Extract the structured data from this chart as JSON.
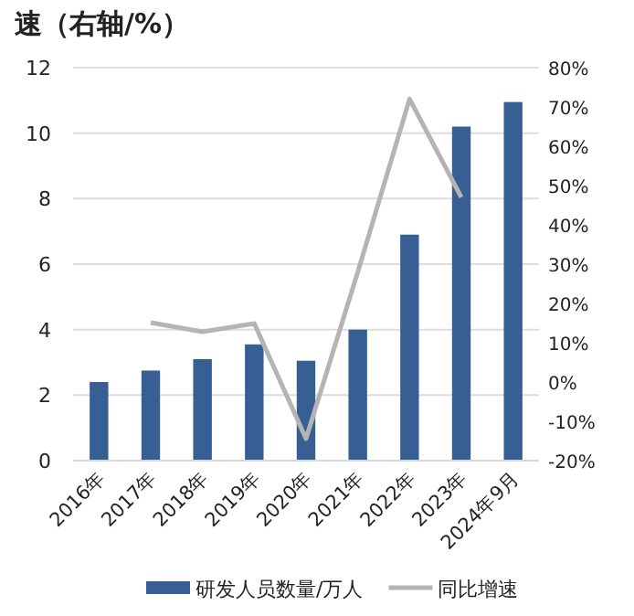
{
  "chart_data": {
    "type": "bar",
    "title": "速（右轴/%）",
    "categories": [
      "2016年",
      "2017年",
      "2018年",
      "2019年",
      "2020年",
      "2021年",
      "2022年",
      "2023年",
      "2024年9月"
    ],
    "series": [
      {
        "name": "研发人员数量/万人",
        "color": "#375f94",
        "values": [
          2.4,
          2.75,
          3.1,
          3.55,
          3.05,
          4.0,
          6.9,
          10.2,
          10.95
        ]
      },
      {
        "name": "同比增速",
        "type": "line",
        "axis": "y2",
        "color": "#b4b4b4",
        "values": [
          null,
          15.1,
          12.8,
          14.9,
          -14.4,
          28,
          72,
          47,
          null
        ]
      }
    ],
    "ylim": [
      0,
      12
    ],
    "yticks": [
      0,
      2,
      4,
      6,
      8,
      10,
      12
    ],
    "y2lim": [
      -20,
      80
    ],
    "y2ticks": [
      {
        "value": -20,
        "label": "-20%"
      },
      {
        "value": -10,
        "label": "-10%"
      },
      {
        "value": 0,
        "label": "0%"
      },
      {
        "value": 10,
        "label": "10%"
      },
      {
        "value": 20,
        "label": "20%"
      },
      {
        "value": 30,
        "label": "30%"
      },
      {
        "value": 40,
        "label": "40%"
      },
      {
        "value": 50,
        "label": "50%"
      },
      {
        "value": 60,
        "label": "60%"
      },
      {
        "value": 70,
        "label": "70%"
      },
      {
        "value": 80,
        "label": "80%"
      }
    ],
    "grid": "y",
    "legend": "bottom"
  }
}
